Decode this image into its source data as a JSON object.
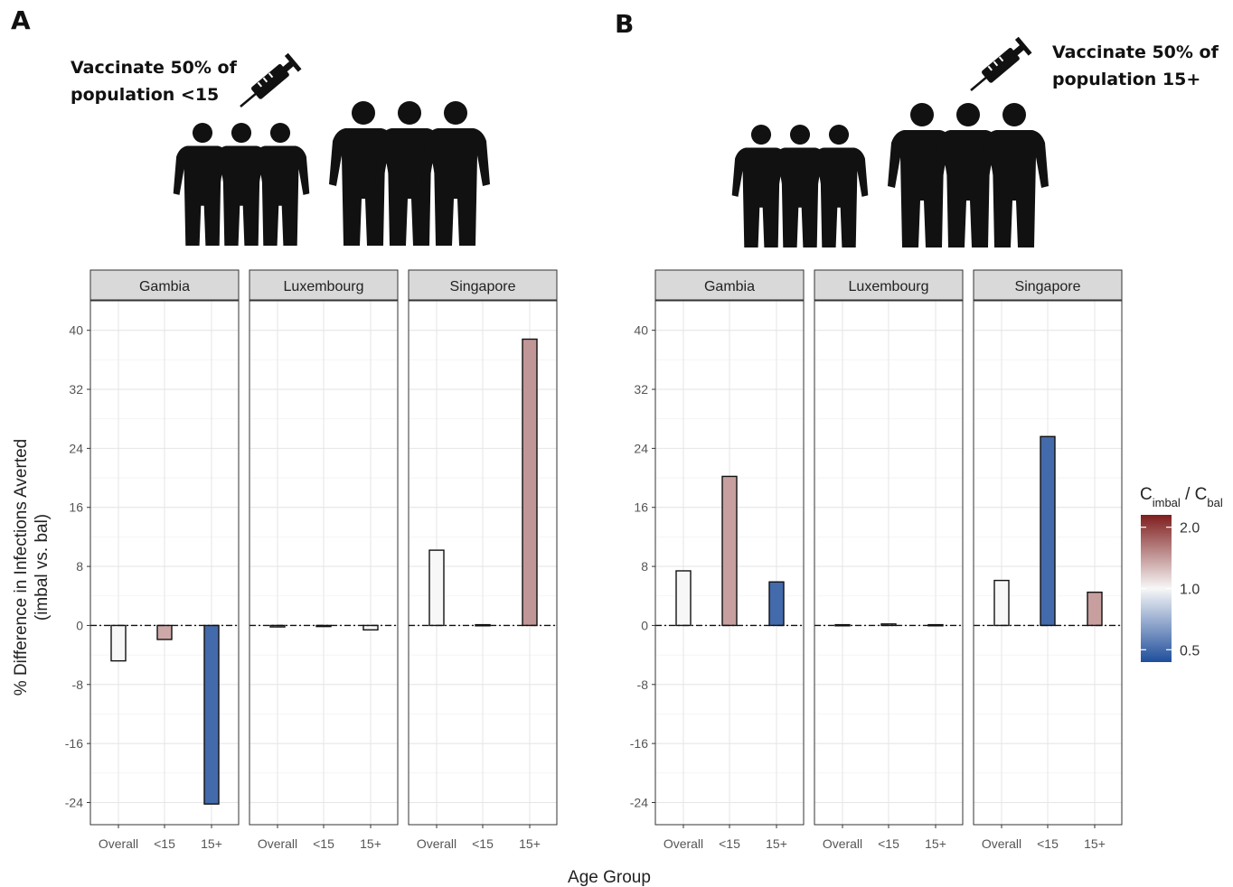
{
  "panels": [
    {
      "letter": "A",
      "caption_line1": "Vaccinate 50% of",
      "caption_line2": "population <15"
    },
    {
      "letter": "B",
      "caption_line1": "Vaccinate 50% of",
      "caption_line2": "population 15+"
    }
  ],
  "icons": [
    "syringe-icon",
    "children-group-icon",
    "adults-group-icon"
  ],
  "colors": {
    "low": "#1f4e9c",
    "mid": "#f7f7f7",
    "high": "#7f1d1d",
    "strip_bg": "#d9d9d9",
    "grid": "#ebebeb"
  },
  "chart_data": [
    {
      "type": "bar",
      "panel": "A",
      "facets": [
        "Gambia",
        "Luxembourg",
        "Singapore"
      ],
      "categories": [
        "Overall",
        "<15",
        "15+"
      ],
      "values": [
        [
          -4.8,
          -1.9,
          -24.2
        ],
        [
          -0.2,
          -0.1,
          -0.6
        ],
        [
          10.2,
          0.1,
          38.8
        ]
      ],
      "ratio": [
        [
          1.0,
          1.35,
          0.5
        ],
        [
          1.0,
          1.0,
          1.0
        ],
        [
          1.0,
          1.0,
          1.45
        ]
      ],
      "xlabel": "Age Group",
      "ylabel": "% Difference in Infections Averted",
      "ylabel2": "(imbal vs. bal)",
      "ylim": [
        -27,
        44
      ],
      "yticks": [
        -24,
        -16,
        -8,
        0,
        8,
        16,
        24,
        32,
        40
      ],
      "grid": true,
      "reference_line": 0
    },
    {
      "type": "bar",
      "panel": "B",
      "facets": [
        "Gambia",
        "Luxembourg",
        "Singapore"
      ],
      "categories": [
        "Overall",
        "<15",
        "15+"
      ],
      "values": [
        [
          7.4,
          20.2,
          5.9
        ],
        [
          0.1,
          0.2,
          0.1
        ],
        [
          6.1,
          25.6,
          4.5
        ]
      ],
      "ratio": [
        [
          1.0,
          1.4,
          0.5
        ],
        [
          1.0,
          1.0,
          1.0
        ],
        [
          1.0,
          0.5,
          1.4
        ]
      ],
      "xlabel": "Age Group",
      "ylim": [
        -27,
        44
      ],
      "yticks": [
        -24,
        -16,
        -8,
        0,
        8,
        16,
        24,
        32,
        40
      ],
      "grid": true,
      "reference_line": 0
    }
  ],
  "legend": {
    "title_main": "C",
    "title_sub1": "imbal",
    "title_sep": " / C",
    "title_sub2": "bal",
    "breaks": [
      2.0,
      1.0,
      0.5
    ],
    "break_labels": [
      "2.0",
      "1.0",
      "0.5"
    ],
    "placement": "right"
  }
}
